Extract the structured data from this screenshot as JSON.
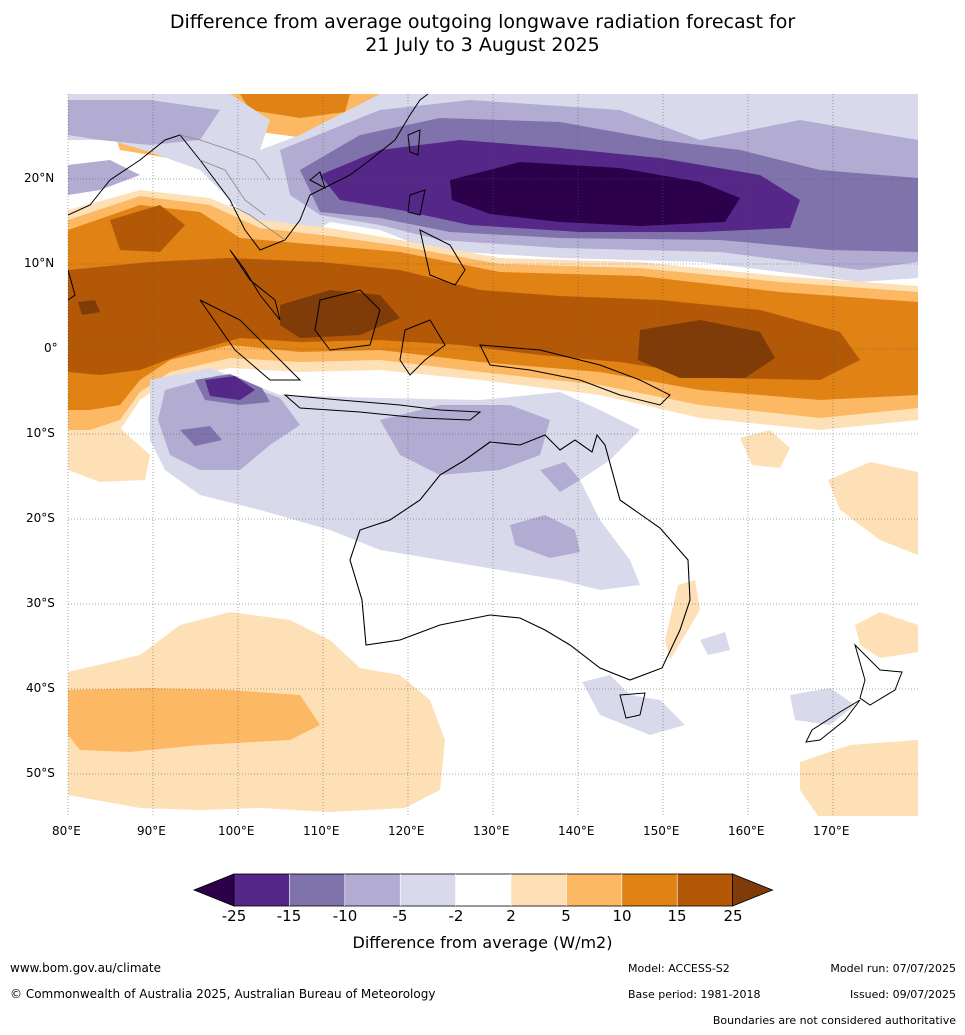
{
  "title_line1": "Difference from average outgoing longwave radiation forecast for",
  "title_line2": "21 July to 3 August 2025",
  "lon_ticks": [
    "80°E",
    "90°E",
    "100°E",
    "110°E",
    "120°E",
    "130°E",
    "140°E",
    "150°E",
    "160°E",
    "170°E"
  ],
  "lat_ticks": [
    "20°N",
    "10°N",
    "0°",
    "10°S",
    "20°S",
    "30°S",
    "40°S",
    "50°S"
  ],
  "colorbar": {
    "title": "Difference from average (W/m2)",
    "levels": [
      "-25",
      "-15",
      "-10",
      "-5",
      "-2",
      "2",
      "5",
      "10",
      "15",
      "25"
    ],
    "colors": [
      "#2d004b",
      "#542788",
      "#8073ac",
      "#b2abd2",
      "#d8daeb",
      "#ffffff",
      "#fee0b6",
      "#fdb863",
      "#e08214",
      "#b35806",
      "#7f3b08"
    ]
  },
  "footer": {
    "website": "www.bom.gov.au/climate",
    "copyright": "© Commonwealth of Australia 2025, Australian Bureau of Meteorology",
    "model": "Model: ACCESS-S2",
    "base_period": "Base period: 1981-2018",
    "model_run": "Model run: 07/07/2025",
    "issued": "Issued: 09/07/2025",
    "boundaries_note": "Boundaries are not considered authoritative"
  }
}
